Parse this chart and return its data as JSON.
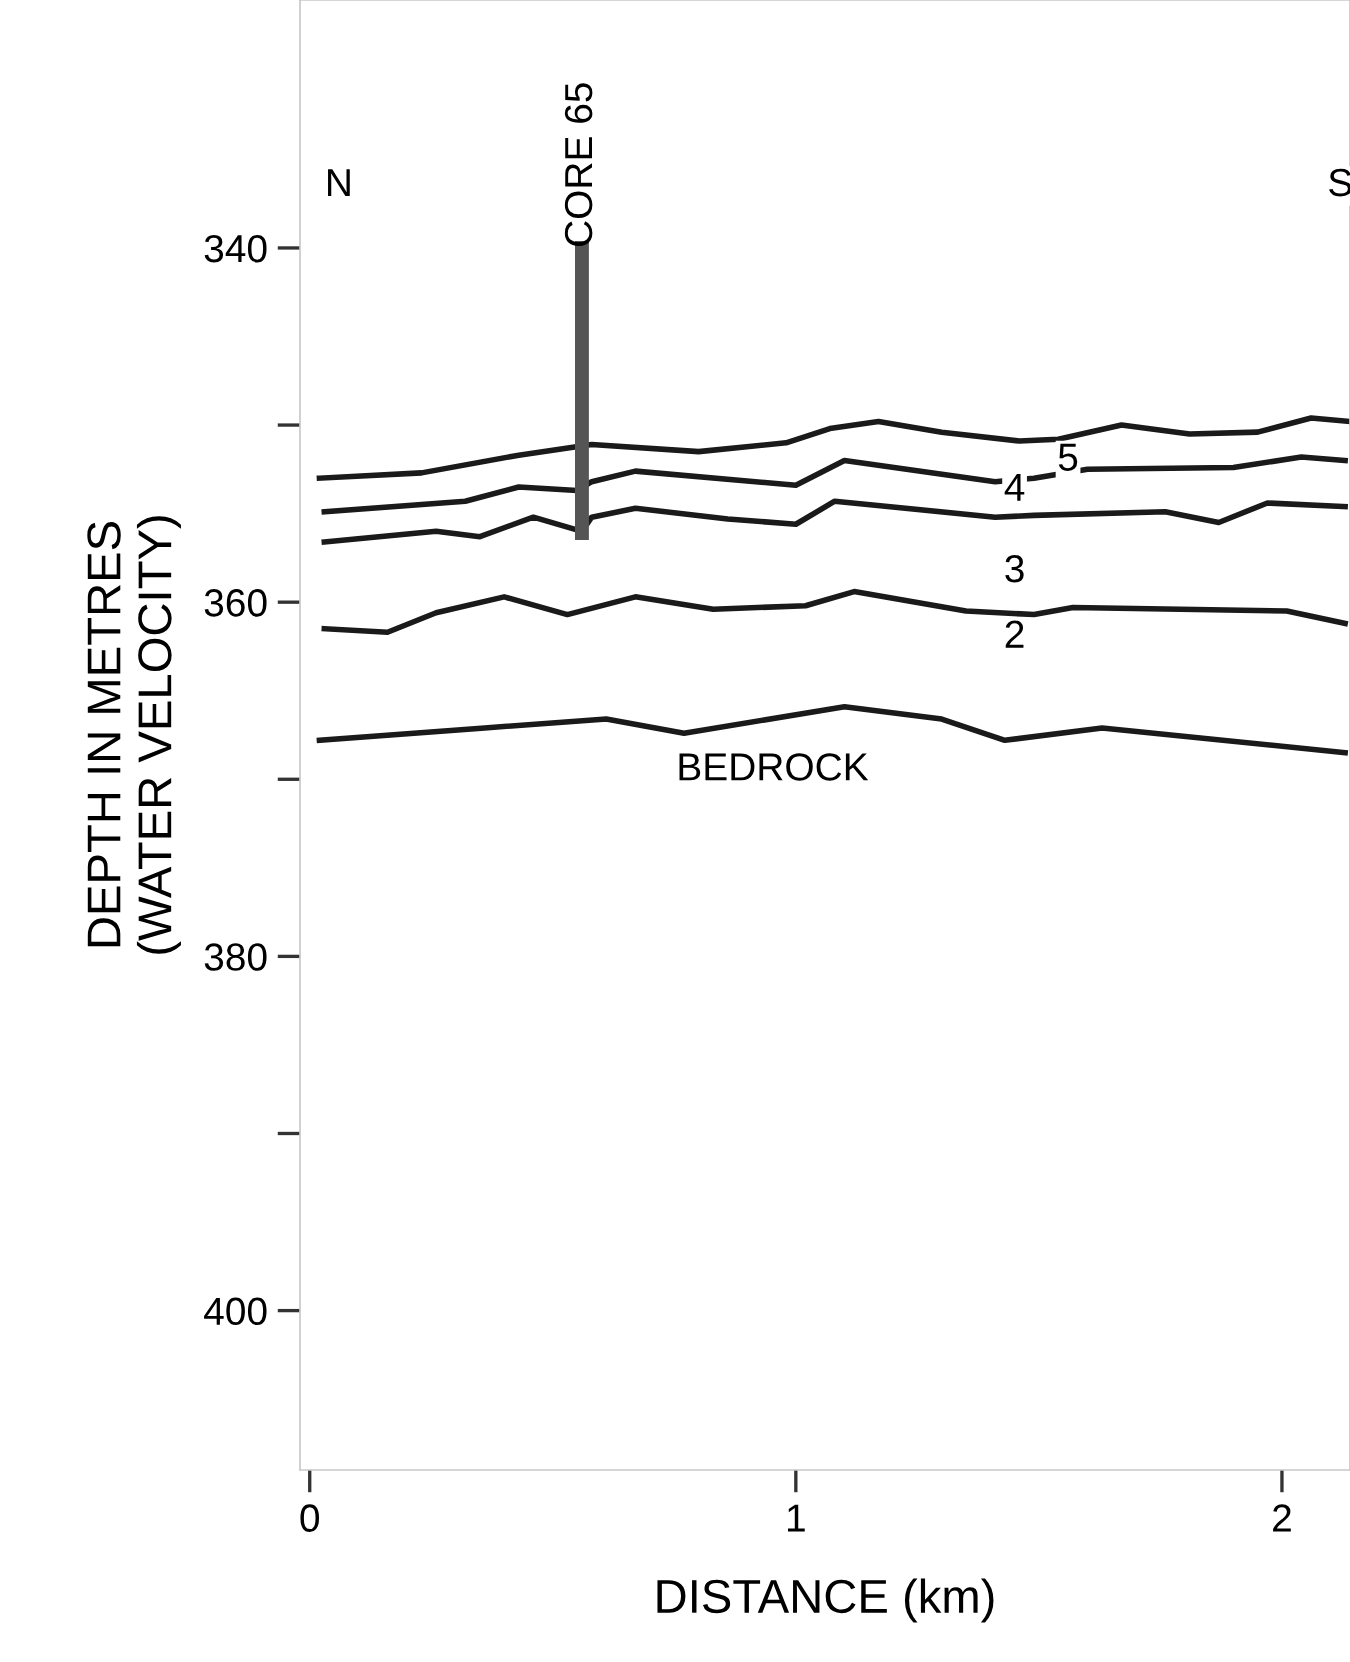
{
  "chart_data": {
    "type": "line",
    "xlabel": "DISTANCE (km)",
    "ylabel": "DEPTH IN METRES\n(WATER VELOCITY)",
    "xlim": [
      -0.02,
      2.14
    ],
    "ylim": [
      409,
      326
    ],
    "xticks": [
      0,
      1,
      2
    ],
    "yticks": [
      340,
      {
        "value": 350,
        "label": null
      },
      360,
      {
        "value": 370,
        "label": null
      },
      380,
      {
        "value": 390,
        "label": null
      },
      400
    ],
    "grid": false,
    "legend": false,
    "marker": "none",
    "line_style": "solid",
    "series": [
      {
        "color": "#1a1a1a",
        "x": [
          0.02,
          0.23,
          0.43,
          0.58,
          0.8,
          0.98,
          1.07,
          1.17,
          1.3,
          1.46,
          1.54,
          1.67,
          1.81,
          1.95,
          2.06,
          2.14
        ],
        "values": [
          353.0,
          352.7,
          351.7,
          351.1,
          351.5,
          351.0,
          350.2,
          349.8,
          350.4,
          350.9,
          350.8,
          350.0,
          350.5,
          350.4,
          349.6,
          349.8
        ]
      },
      {
        "color": "#1a1a1a",
        "x": [
          0.03,
          0.32,
          0.43,
          0.55,
          0.58,
          0.67,
          1.0,
          1.1,
          1.41,
          1.49,
          1.6,
          1.9,
          2.04,
          2.13
        ],
        "values": [
          354.9,
          354.3,
          353.5,
          353.7,
          353.2,
          352.6,
          353.4,
          352.0,
          353.2,
          353.0,
          352.5,
          352.4,
          351.8,
          352.0
        ]
      },
      {
        "color": "#1a1a1a",
        "x": [
          0.03,
          0.26,
          0.35,
          0.46,
          0.56,
          0.58,
          0.67,
          0.86,
          1.0,
          1.08,
          1.41,
          1.49,
          1.76,
          1.87,
          1.97,
          2.13
        ],
        "values": [
          356.6,
          356.0,
          356.3,
          355.2,
          356.0,
          355.2,
          354.7,
          355.3,
          355.6,
          354.3,
          355.2,
          355.1,
          354.9,
          355.5,
          354.4,
          354.6
        ]
      },
      {
        "color": "#1a1a1a",
        "x": [
          0.03,
          0.16,
          0.26,
          0.4,
          0.53,
          0.67,
          0.83,
          1.02,
          1.12,
          1.35,
          1.49,
          1.57,
          2.01,
          2.13
        ],
        "values": [
          361.5,
          361.7,
          360.6,
          359.7,
          360.7,
          359.7,
          360.4,
          360.2,
          359.4,
          360.5,
          360.7,
          360.3,
          360.5,
          361.2
        ]
      },
      {
        "color": "#1a1a1a",
        "x": [
          0.02,
          0.36,
          0.61,
          0.77,
          1.1,
          1.3,
          1.43,
          1.63,
          2.13
        ],
        "values": [
          367.8,
          367.1,
          366.6,
          367.4,
          365.9,
          366.6,
          367.8,
          367.1,
          368.5
        ]
      },
      {
        "name": "CORE 65",
        "color": "#555555",
        "x": [
          0.56,
          0.56
        ],
        "values": [
          340,
          356.1
        ]
      }
    ],
    "annotations": [
      {
        "text": "5",
        "x": 1.56,
        "y": 352.0
      },
      {
        "text": "4",
        "x": 1.45,
        "y": 353.7
      },
      {
        "text": "3",
        "x": 1.45,
        "y": 358.3
      },
      {
        "text": "2",
        "x": 1.45,
        "y": 362.0
      },
      "BEDROCK",
      {
        "text": "N",
        "x": 0.06,
        "y": 336.5
      },
      {
        "text": "S",
        "x": 2.12,
        "y": 336.5
      }
    ]
  }
}
